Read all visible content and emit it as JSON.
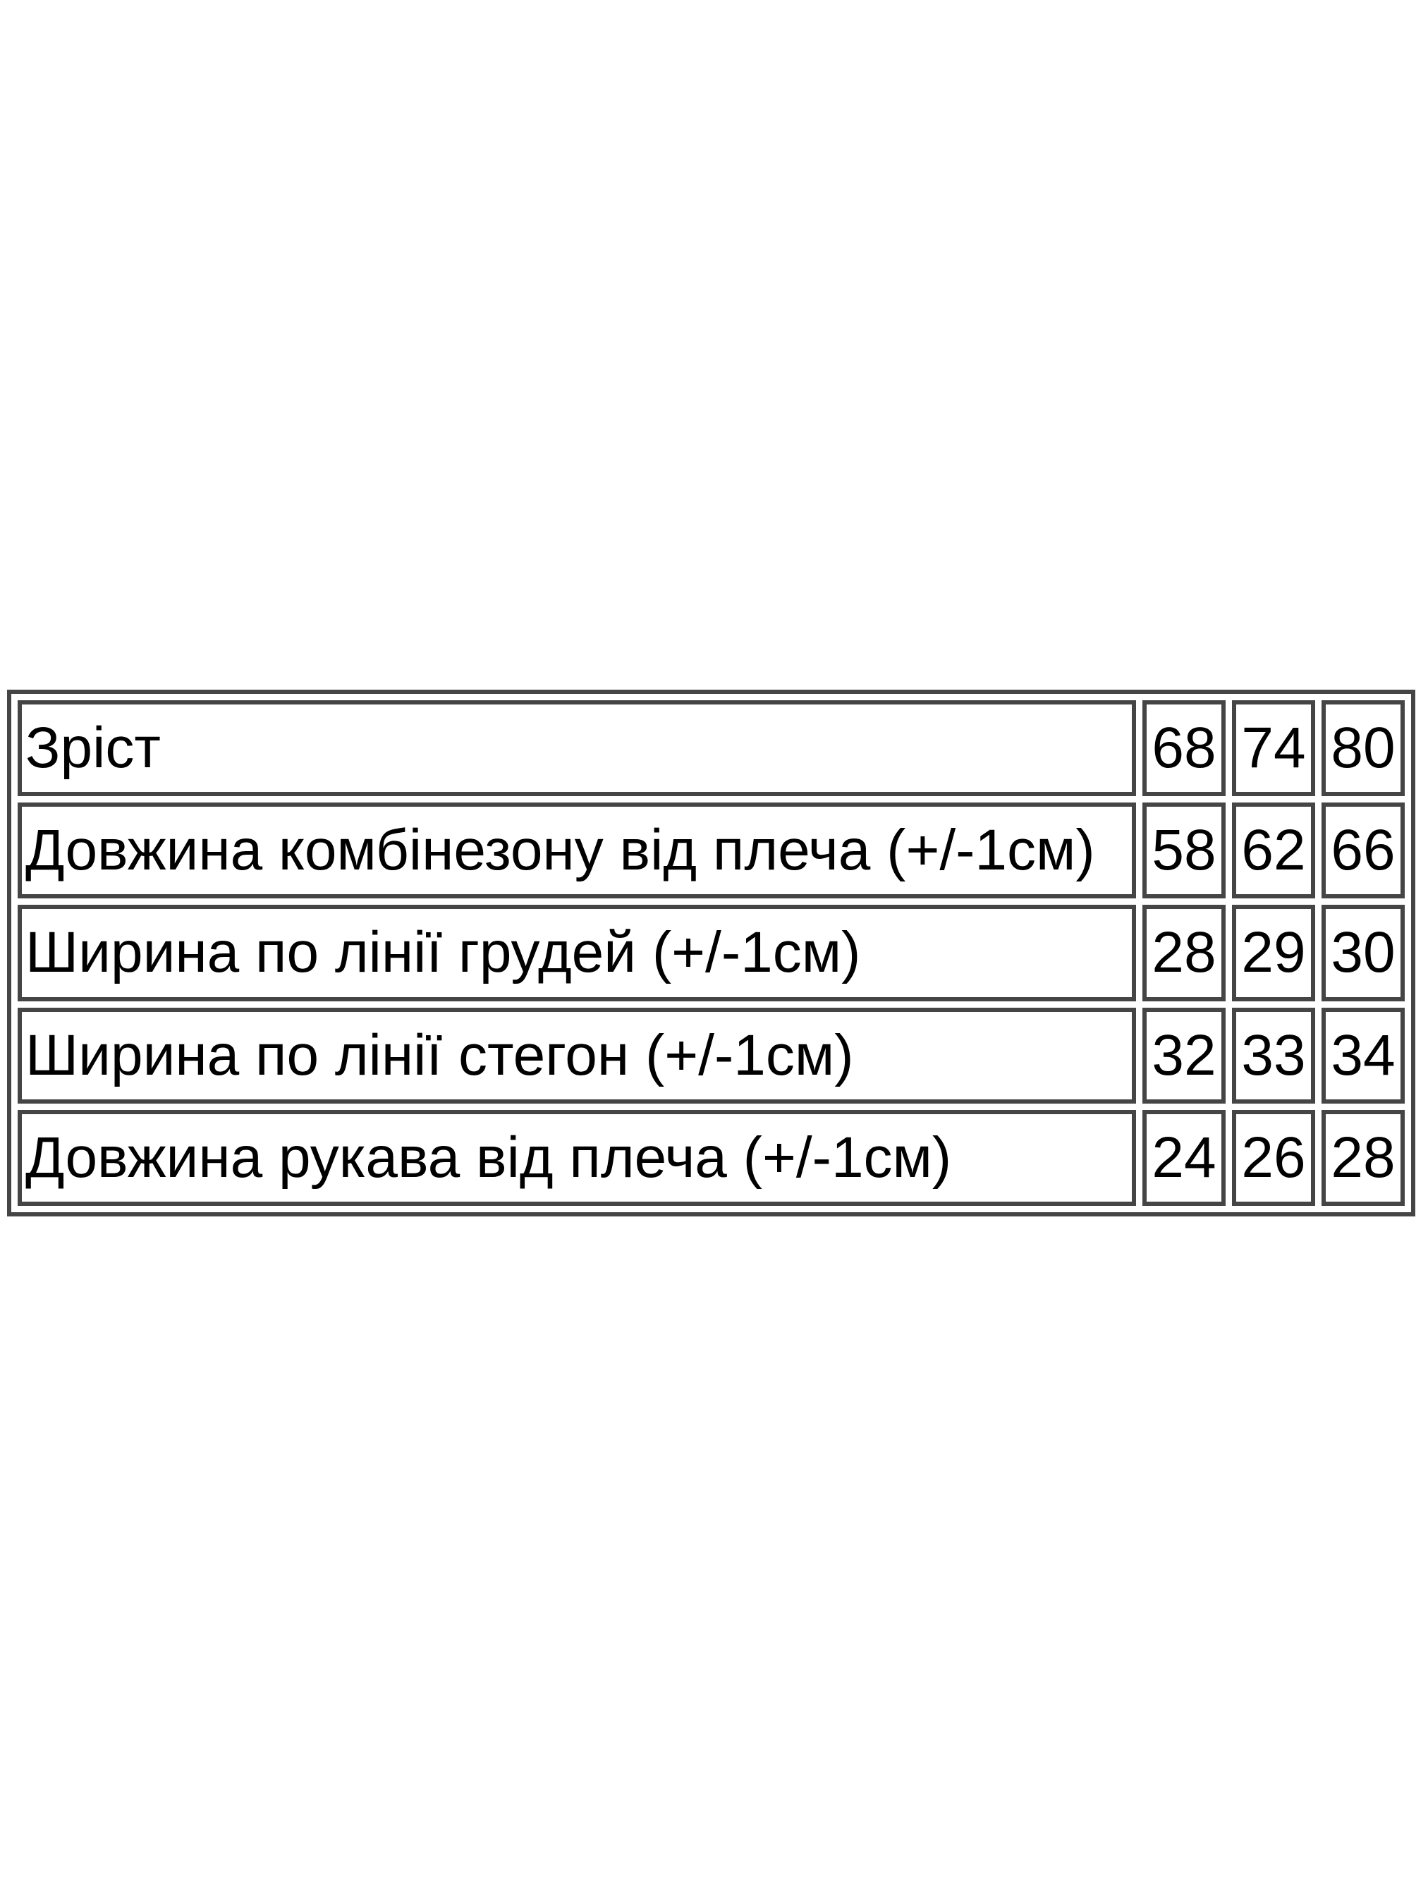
{
  "page": {
    "background_color": "#ffffff",
    "text_color": "#000000",
    "table_border_color": "#454545"
  },
  "chart_data": {
    "type": "table",
    "title": "",
    "columns": [
      "label",
      "size-68",
      "size-74",
      "size-80"
    ],
    "rows": [
      {
        "label": "Зріст",
        "values": [
          "68",
          "74",
          "80"
        ]
      },
      {
        "label": "Довжина комбінезону від плеча (+/-1см)",
        "values": [
          "58",
          "62",
          "66"
        ]
      },
      {
        "label": "Ширина по лінії грудей (+/-1см)",
        "values": [
          "28",
          "29",
          "30"
        ]
      },
      {
        "label": "Ширина по лінії стегон (+/-1см)",
        "values": [
          "32",
          "33",
          "34"
        ]
      },
      {
        "label": "Довжина рукава від плеча (+/-1см)",
        "values": [
          "24",
          "26",
          "28"
        ]
      }
    ]
  }
}
